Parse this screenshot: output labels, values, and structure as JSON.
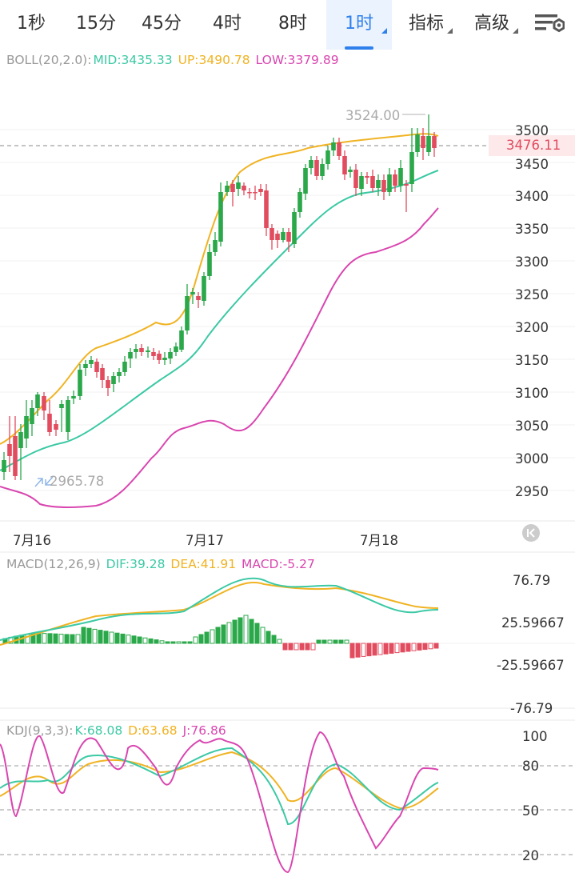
{
  "tabs": [
    {
      "label": "1秒"
    },
    {
      "label": "15分"
    },
    {
      "label": "45分"
    },
    {
      "label": "4时"
    },
    {
      "label": "8时"
    },
    {
      "label": "1时",
      "active": true
    },
    {
      "label": "指标"
    },
    {
      "label": "高级"
    }
  ],
  "settings_icon": "settings-sliders-icon",
  "boll": {
    "label": "BOLL(20,2.0):",
    "mid": "MID:3435.33",
    "up": "UP:3490.78",
    "low": "LOW:3379.89"
  },
  "price_axis": [
    "3500",
    "3450",
    "3400",
    "3350",
    "3300",
    "3250",
    "3200",
    "3150",
    "3100",
    "3050",
    "3000",
    "2950"
  ],
  "current_price": "3476.11",
  "high_label": "3524.00",
  "low_label": "2965.78",
  "dates": [
    "7月16",
    "7月17",
    "7月18"
  ],
  "macd": {
    "label": "MACD(12,26,9)",
    "dif": "DIF:39.28",
    "dea": "DEA:41.91",
    "macd": "MACD:-5.27",
    "axis": [
      "76.79",
      "25.59667",
      "-25.59667",
      "-76.79"
    ]
  },
  "kdj": {
    "label": "KDJ(9,3,3):",
    "k": "K:68.08",
    "d": "D:63.68",
    "j": "J:76.86",
    "axis": [
      "100",
      "80",
      "50",
      "20"
    ]
  },
  "colors": {
    "up": "#2aa84a",
    "down": "#e14c5f",
    "mid": "#3cc9a5",
    "upper": "#f0b323",
    "lower": "#d946b0",
    "blue": "#2f80ed"
  }
}
